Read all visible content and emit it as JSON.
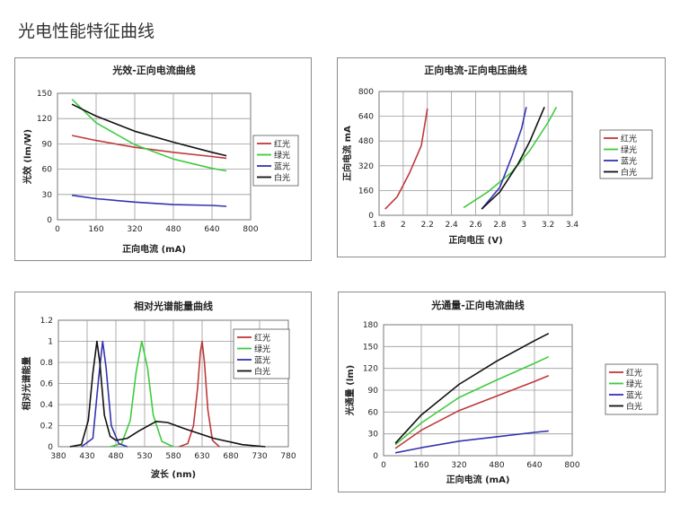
{
  "page": {
    "title": "光电性能特征曲线"
  },
  "chart_data": [
    {
      "type": "line",
      "title": "光效-正向电流曲线",
      "xlabel": "正向电流 (mA)",
      "ylabel": "光效 (lm/W)",
      "xlim": [
        0,
        800
      ],
      "ylim": [
        0,
        150
      ],
      "xticks": [
        "0",
        "160",
        "320",
        "480",
        "640",
        "800"
      ],
      "yticks": [
        "0",
        "30",
        "60",
        "90",
        "120",
        "150"
      ],
      "grid": true,
      "legend_position": "right",
      "series": [
        {
          "name": "红光",
          "color": "#c0393b",
          "points": [
            [
              60,
              100
            ],
            [
              160,
              94
            ],
            [
              320,
              86
            ],
            [
              480,
              80
            ],
            [
              640,
              75
            ],
            [
              700,
              73
            ]
          ]
        },
        {
          "name": "绿光",
          "color": "#3fcb3f",
          "points": [
            [
              60,
              143
            ],
            [
              160,
              115
            ],
            [
              320,
              89
            ],
            [
              480,
              72
            ],
            [
              640,
              61
            ],
            [
              700,
              58
            ]
          ]
        },
        {
          "name": "蓝光",
          "color": "#3434b0",
          "points": [
            [
              60,
              29
            ],
            [
              160,
              25
            ],
            [
              320,
              21
            ],
            [
              480,
              18
            ],
            [
              640,
              17
            ],
            [
              700,
              16
            ]
          ]
        },
        {
          "name": "白光",
          "color": "#111111",
          "points": [
            [
              60,
              137
            ],
            [
              160,
              123
            ],
            [
              320,
              105
            ],
            [
              480,
              92
            ],
            [
              640,
              80
            ],
            [
              700,
              76
            ]
          ]
        }
      ]
    },
    {
      "type": "line",
      "title": "正向电流-正向电压曲线",
      "xlabel": "正向电压 (V)",
      "ylabel": "正向电流 mA",
      "xlim": [
        1.8,
        3.4
      ],
      "ylim": [
        0,
        800
      ],
      "xticks": [
        "1.8",
        "2",
        "2.2",
        "2.4",
        "2.6",
        "2.8",
        "3",
        "3.2",
        "3.4"
      ],
      "yticks": [
        "0",
        "160",
        "320",
        "480",
        "640",
        "800"
      ],
      "grid": true,
      "legend_position": "right",
      "series": [
        {
          "name": "红光",
          "color": "#c0393b",
          "points": [
            [
              1.85,
              40
            ],
            [
              1.95,
              120
            ],
            [
              2.05,
              270
            ],
            [
              2.15,
              450
            ],
            [
              2.2,
              690
            ]
          ]
        },
        {
          "name": "绿光",
          "color": "#3fcb3f",
          "points": [
            [
              2.5,
              50
            ],
            [
              2.7,
              150
            ],
            [
              2.9,
              280
            ],
            [
              3.05,
              420
            ],
            [
              3.2,
              600
            ],
            [
              3.27,
              700
            ]
          ]
        },
        {
          "name": "蓝光",
          "color": "#3434b0",
          "points": [
            [
              2.65,
              40
            ],
            [
              2.8,
              180
            ],
            [
              2.9,
              380
            ],
            [
              2.98,
              560
            ],
            [
              3.02,
              700
            ]
          ]
        },
        {
          "name": "白光",
          "color": "#111111",
          "points": [
            [
              2.65,
              40
            ],
            [
              2.8,
              150
            ],
            [
              2.95,
              330
            ],
            [
              3.05,
              480
            ],
            [
              3.17,
              700
            ]
          ]
        }
      ]
    },
    {
      "type": "line",
      "title": "相对光谱能量曲线",
      "xlabel": "波长 (nm)",
      "ylabel": "相对光谱能量",
      "xlim": [
        380,
        780
      ],
      "ylim": [
        0,
        1.2
      ],
      "xticks": [
        "380",
        "430",
        "480",
        "530",
        "580",
        "630",
        "680",
        "730",
        "780"
      ],
      "yticks": [
        "0",
        "0.2",
        "0.4",
        "0.6",
        "0.8",
        "1",
        "1.2"
      ],
      "grid": true,
      "legend_position": "right",
      "series": [
        {
          "name": "红光",
          "color": "#c0393b",
          "points": [
            [
              590,
              0
            ],
            [
              605,
              0.03
            ],
            [
              615,
              0.2
            ],
            [
              622,
              0.55
            ],
            [
              627,
              0.9
            ],
            [
              630,
              1.0
            ],
            [
              634,
              0.8
            ],
            [
              640,
              0.35
            ],
            [
              648,
              0.06
            ],
            [
              660,
              0
            ]
          ]
        },
        {
          "name": "绿光",
          "color": "#3fcb3f",
          "points": [
            [
              470,
              0
            ],
            [
              490,
              0.03
            ],
            [
              505,
              0.25
            ],
            [
              515,
              0.7
            ],
            [
              525,
              1.0
            ],
            [
              535,
              0.75
            ],
            [
              545,
              0.3
            ],
            [
              560,
              0.05
            ],
            [
              580,
              0
            ]
          ]
        },
        {
          "name": "蓝光",
          "color": "#3434b0",
          "points": [
            [
              420,
              0
            ],
            [
              440,
              0.08
            ],
            [
              450,
              0.65
            ],
            [
              457,
              1.0
            ],
            [
              463,
              0.75
            ],
            [
              472,
              0.2
            ],
            [
              485,
              0.03
            ],
            [
              500,
              0
            ]
          ]
        },
        {
          "name": "白光",
          "color": "#111111",
          "points": [
            [
              400,
              0
            ],
            [
              420,
              0.02
            ],
            [
              432,
              0.25
            ],
            [
              440,
              0.7
            ],
            [
              447,
              1.0
            ],
            [
              452,
              0.8
            ],
            [
              460,
              0.3
            ],
            [
              470,
              0.1
            ],
            [
              480,
              0.06
            ],
            [
              500,
              0.08
            ],
            [
              520,
              0.15
            ],
            [
              550,
              0.24
            ],
            [
              570,
              0.23
            ],
            [
              600,
              0.17
            ],
            [
              650,
              0.08
            ],
            [
              700,
              0.02
            ],
            [
              740,
              0
            ]
          ]
        }
      ]
    },
    {
      "type": "line",
      "title": "光通量-正向电流曲线",
      "xlabel": "正向电流 (mA)",
      "ylabel": "光通量 (lm)",
      "xlim": [
        0,
        800
      ],
      "ylim": [
        0,
        180
      ],
      "xticks": [
        "0",
        "160",
        "320",
        "480",
        "640",
        "800"
      ],
      "yticks": [
        "0",
        "30",
        "60",
        "90",
        "120",
        "150",
        "180"
      ],
      "grid": true,
      "legend_position": "right",
      "series": [
        {
          "name": "红光",
          "color": "#c0393b",
          "points": [
            [
              50,
              10
            ],
            [
              160,
              35
            ],
            [
              320,
              62
            ],
            [
              480,
              82
            ],
            [
              640,
              102
            ],
            [
              700,
              110
            ]
          ]
        },
        {
          "name": "绿光",
          "color": "#3fcb3f",
          "points": [
            [
              50,
              15
            ],
            [
              160,
              45
            ],
            [
              320,
              80
            ],
            [
              480,
              104
            ],
            [
              640,
              127
            ],
            [
              700,
              136
            ]
          ]
        },
        {
          "name": "蓝光",
          "color": "#3434b0",
          "points": [
            [
              50,
              4
            ],
            [
              160,
              11
            ],
            [
              320,
              20
            ],
            [
              480,
              26
            ],
            [
              640,
              32
            ],
            [
              700,
              34
            ]
          ]
        },
        {
          "name": "白光",
          "color": "#111111",
          "points": [
            [
              50,
              17
            ],
            [
              160,
              56
            ],
            [
              320,
              98
            ],
            [
              480,
              130
            ],
            [
              640,
              158
            ],
            [
              700,
              168
            ]
          ]
        }
      ]
    }
  ]
}
